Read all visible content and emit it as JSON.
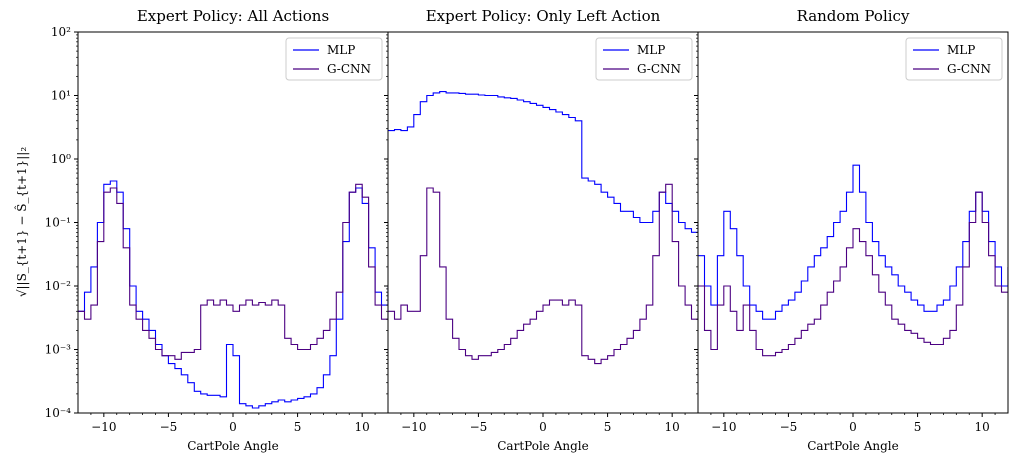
{
  "chart_data": [
    {
      "type": "step-histogram",
      "title": "Expert Policy: All Actions",
      "xlabel": "CartPole Angle",
      "ylabel": "√||S_{t+1} − Ŝ_{t+1}||₂",
      "yscale": "log",
      "xlim": [
        -12,
        12
      ],
      "ylim": [
        0.0001,
        100
      ],
      "xticks": [
        "−10",
        "−5",
        "0",
        "5",
        "10"
      ],
      "yticks": [
        "10⁻⁴",
        "10⁻³",
        "10⁻²",
        "10⁻¹",
        "10⁰",
        "10¹",
        "10²"
      ],
      "legend_position": "top-right",
      "series": [
        {
          "name": "MLP",
          "color": "#0000ff",
          "x": [
            -12,
            -11.5,
            -11,
            -10.5,
            -10,
            -9.5,
            -9,
            -8.5,
            -8,
            -7.5,
            -7,
            -6.5,
            -6,
            -5.5,
            -5,
            -4.5,
            -4,
            -3.5,
            -3,
            -2.5,
            -2,
            -1.5,
            -1,
            -0.5,
            0,
            0.5,
            1,
            1.5,
            2,
            2.5,
            3,
            3.5,
            4,
            4.5,
            5,
            5.5,
            6,
            6.5,
            7,
            7.5,
            8,
            8.5,
            9,
            9.5,
            10,
            10.5,
            11,
            11.5,
            12
          ],
          "y": [
            0.004,
            0.008,
            0.02,
            0.1,
            0.4,
            0.45,
            0.3,
            0.08,
            0.01,
            0.004,
            0.003,
            0.002,
            0.0012,
            0.0008,
            0.0006,
            0.0005,
            0.0004,
            0.0003,
            0.00022,
            0.0002,
            0.00019,
            0.00019,
            0.00018,
            0.0012,
            0.0008,
            0.00014,
            0.00013,
            0.00012,
            0.00013,
            0.00014,
            0.00015,
            0.00016,
            0.00015,
            0.00016,
            0.00017,
            0.00018,
            0.0002,
            0.00025,
            0.0004,
            0.0008,
            0.003,
            0.05,
            0.3,
            0.35,
            0.2,
            0.04,
            0.008,
            0.005,
            0.01
          ]
        },
        {
          "name": "G-CNN",
          "color": "#4b0082",
          "x": [
            -12,
            -11.5,
            -11,
            -10.5,
            -10,
            -9.5,
            -9,
            -8.5,
            -8,
            -7.5,
            -7,
            -6.5,
            -6,
            -5.5,
            -5,
            -4.5,
            -4,
            -3.5,
            -3,
            -2.5,
            -2,
            -1.5,
            -1,
            -0.5,
            0,
            0.5,
            1,
            1.5,
            2,
            2.5,
            3,
            3.5,
            4,
            4.5,
            5,
            5.5,
            6,
            6.5,
            7,
            7.5,
            8,
            8.5,
            9,
            9.5,
            10,
            10.5,
            11,
            11.5,
            12
          ],
          "y": [
            0.004,
            0.003,
            0.005,
            0.05,
            0.3,
            0.35,
            0.2,
            0.04,
            0.005,
            0.003,
            0.002,
            0.0015,
            0.001,
            0.0008,
            0.0008,
            0.0007,
            0.0009,
            0.0009,
            0.001,
            0.005,
            0.006,
            0.005,
            0.006,
            0.005,
            0.004,
            0.005,
            0.006,
            0.005,
            0.0055,
            0.005,
            0.006,
            0.005,
            0.0015,
            0.0012,
            0.001,
            0.001,
            0.0012,
            0.0015,
            0.002,
            0.003,
            0.008,
            0.1,
            0.3,
            0.4,
            0.25,
            0.02,
            0.005,
            0.003,
            0.004
          ]
        }
      ]
    },
    {
      "type": "step-histogram",
      "title": "Expert Policy: Only Left Action",
      "xlabel": "CartPole Angle",
      "yscale": "log",
      "xlim": [
        -12,
        12
      ],
      "ylim": [
        0.0001,
        100
      ],
      "xticks": [
        "−10",
        "−5",
        "0",
        "5",
        "10"
      ],
      "legend_position": "top-right",
      "series": [
        {
          "name": "MLP",
          "color": "#0000ff",
          "x": [
            -12,
            -11.5,
            -11,
            -10.5,
            -10,
            -9.5,
            -9,
            -8.5,
            -8,
            -7.5,
            -7,
            -6.5,
            -6,
            -5.5,
            -5,
            -4.5,
            -4,
            -3.5,
            -3,
            -2.5,
            -2,
            -1.5,
            -1,
            -0.5,
            0,
            0.5,
            1,
            1.5,
            2,
            2.5,
            3,
            3.5,
            4,
            4.5,
            5,
            5.5,
            6,
            6.5,
            7,
            7.5,
            8,
            8.5,
            9,
            9.5,
            10,
            10.5,
            11,
            11.5,
            12
          ],
          "y": [
            2.8,
            2.9,
            2.8,
            3.2,
            5,
            8,
            10,
            11,
            11.5,
            11,
            11,
            10.8,
            10.5,
            10.5,
            10.2,
            10,
            10,
            9.5,
            9.2,
            9,
            8.5,
            8,
            7.5,
            7,
            6.5,
            6,
            5.5,
            5,
            4.5,
            4,
            0.5,
            0.45,
            0.4,
            0.3,
            0.25,
            0.2,
            0.15,
            0.15,
            0.12,
            0.1,
            0.1,
            0.15,
            0.3,
            0.2,
            0.15,
            0.1,
            0.08,
            0.07,
            0.1
          ]
        },
        {
          "name": "G-CNN",
          "color": "#4b0082",
          "x": [
            -12,
            -11.5,
            -11,
            -10.5,
            -10,
            -9.5,
            -9,
            -8.5,
            -8,
            -7.5,
            -7,
            -6.5,
            -6,
            -5.5,
            -5,
            -4.5,
            -4,
            -3.5,
            -3,
            -2.5,
            -2,
            -1.5,
            -1,
            -0.5,
            0,
            0.5,
            1,
            1.5,
            2,
            2.5,
            3,
            3.5,
            4,
            4.5,
            5,
            5.5,
            6,
            6.5,
            7,
            7.5,
            8,
            8.5,
            9,
            9.5,
            10,
            10.5,
            11,
            11.5,
            12
          ],
          "y": [
            0.004,
            0.003,
            0.005,
            0.004,
            0.004,
            0.03,
            0.35,
            0.3,
            0.02,
            0.003,
            0.0015,
            0.001,
            0.0008,
            0.0007,
            0.0008,
            0.0008,
            0.0009,
            0.001,
            0.0012,
            0.0015,
            0.002,
            0.0025,
            0.003,
            0.004,
            0.005,
            0.006,
            0.006,
            0.005,
            0.006,
            0.005,
            0.0008,
            0.0007,
            0.0006,
            0.0007,
            0.0008,
            0.001,
            0.0012,
            0.0015,
            0.002,
            0.003,
            0.005,
            0.03,
            0.3,
            0.4,
            0.05,
            0.01,
            0.005,
            0.003,
            0.004
          ]
        }
      ]
    },
    {
      "type": "step-histogram",
      "title": "Random Policy",
      "xlabel": "CartPole Angle",
      "yscale": "log",
      "xlim": [
        -12,
        12
      ],
      "ylim": [
        0.0001,
        100
      ],
      "xticks": [
        "−10",
        "−5",
        "0",
        "5",
        "10"
      ],
      "legend_position": "top-right",
      "series": [
        {
          "name": "MLP",
          "color": "#0000ff",
          "x": [
            -12,
            -11.5,
            -11,
            -10.5,
            -10,
            -9.5,
            -9,
            -8.5,
            -8,
            -7.5,
            -7,
            -6.5,
            -6,
            -5.5,
            -5,
            -4.5,
            -4,
            -3.5,
            -3,
            -2.5,
            -2,
            -1.5,
            -1,
            -0.5,
            0,
            0.5,
            1,
            1.5,
            2,
            2.5,
            3,
            3.5,
            4,
            4.5,
            5,
            5.5,
            6,
            6.5,
            7,
            7.5,
            8,
            8.5,
            9,
            9.5,
            10,
            10.5,
            11,
            11.5,
            12
          ],
          "y": [
            0.03,
            0.01,
            0.005,
            0.03,
            0.15,
            0.08,
            0.03,
            0.01,
            0.005,
            0.004,
            0.003,
            0.003,
            0.004,
            0.005,
            0.006,
            0.008,
            0.012,
            0.02,
            0.03,
            0.04,
            0.06,
            0.1,
            0.15,
            0.3,
            0.8,
            0.3,
            0.1,
            0.05,
            0.03,
            0.02,
            0.015,
            0.01,
            0.008,
            0.006,
            0.005,
            0.004,
            0.004,
            0.005,
            0.006,
            0.01,
            0.02,
            0.05,
            0.15,
            0.3,
            0.15,
            0.05,
            0.02,
            0.01,
            0.02
          ]
        },
        {
          "name": "G-CNN",
          "color": "#4b0082",
          "x": [
            -12,
            -11.5,
            -11,
            -10.5,
            -10,
            -9.5,
            -9,
            -8.5,
            -8,
            -7.5,
            -7,
            -6.5,
            -6,
            -5.5,
            -5,
            -4.5,
            -4,
            -3.5,
            -3,
            -2.5,
            -2,
            -1.5,
            -1,
            -0.5,
            0,
            0.5,
            1,
            1.5,
            2,
            2.5,
            3,
            3.5,
            4,
            4.5,
            5,
            5.5,
            6,
            6.5,
            7,
            7.5,
            8,
            8.5,
            9,
            9.5,
            10,
            10.5,
            11,
            11.5,
            12
          ],
          "y": [
            0.01,
            0.002,
            0.001,
            0.005,
            0.01,
            0.004,
            0.002,
            0.005,
            0.002,
            0.001,
            0.0008,
            0.0008,
            0.0009,
            0.001,
            0.0012,
            0.0015,
            0.002,
            0.0025,
            0.003,
            0.005,
            0.008,
            0.012,
            0.02,
            0.04,
            0.08,
            0.05,
            0.03,
            0.015,
            0.008,
            0.005,
            0.003,
            0.0025,
            0.002,
            0.0018,
            0.0015,
            0.0013,
            0.0012,
            0.0012,
            0.0015,
            0.002,
            0.005,
            0.02,
            0.1,
            0.3,
            0.1,
            0.03,
            0.01,
            0.008,
            0.02
          ]
        }
      ]
    }
  ]
}
